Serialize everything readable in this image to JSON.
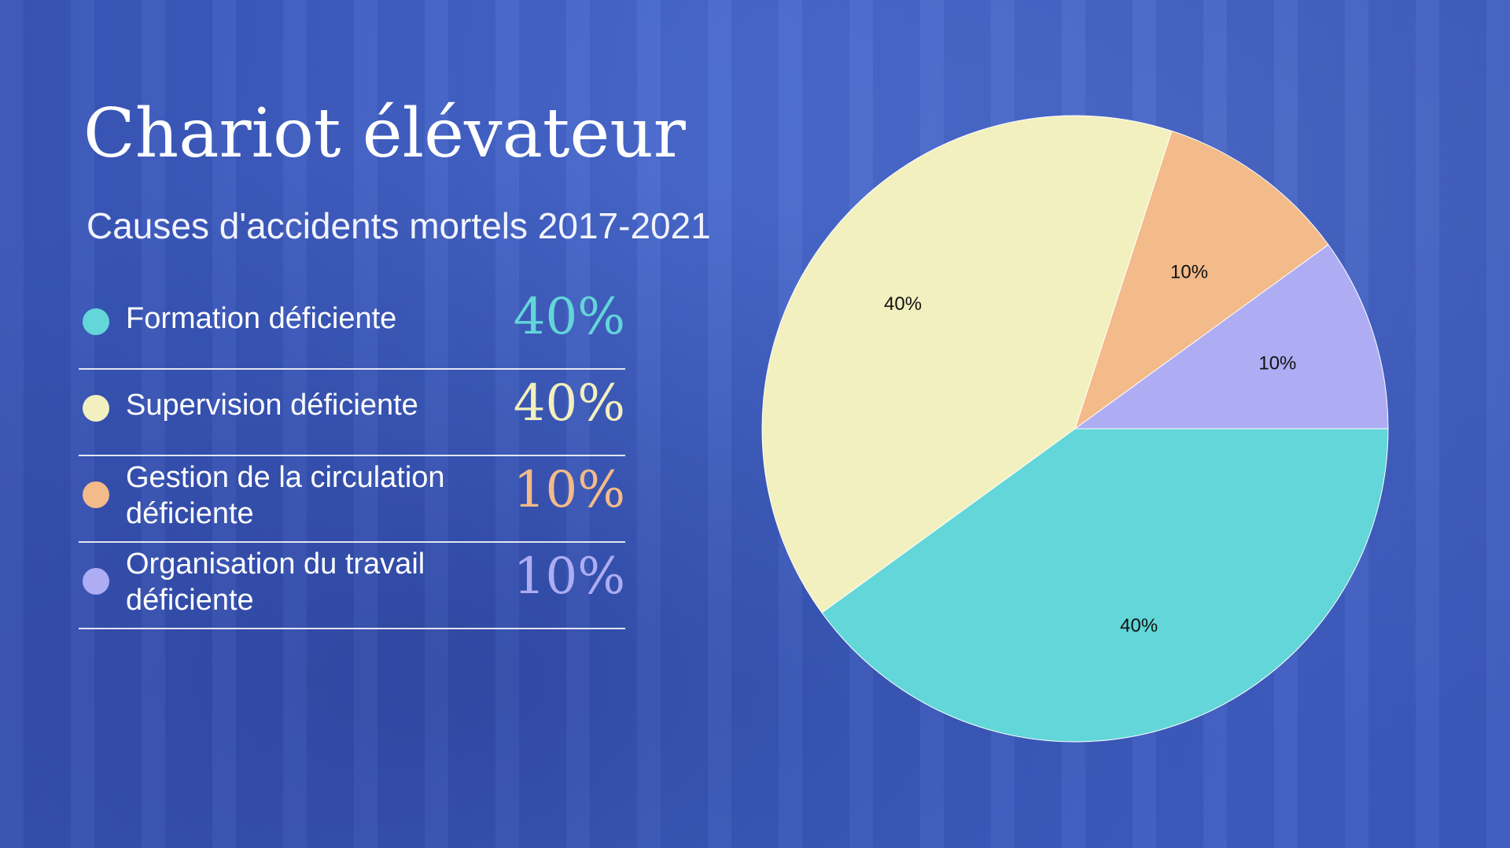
{
  "title": "Chariot élévateur",
  "subtitle": "Causes d'accidents mortels 2017-2021",
  "legend": [
    {
      "label": "Formation déficiente",
      "value": "40%",
      "color": "#62d6d8"
    },
    {
      "label": "Supervision déficiente",
      "value": "40%",
      "color": "#f2f0be"
    },
    {
      "label": "Gestion de la circulation déficiente",
      "value": "10%",
      "color": "#f3ba8a"
    },
    {
      "label": "Organisation du travail déficiente",
      "value": "10%",
      "color": "#aeacf3"
    }
  ],
  "chart_data": {
    "type": "pie",
    "categories": [
      "Formation déficiente",
      "Supervision déficiente",
      "Gestion de la circulation déficiente",
      "Organisation du travail déficiente"
    ],
    "values": [
      40,
      40,
      10,
      10
    ],
    "labels": [
      "40%",
      "40%",
      "10%",
      "10%"
    ],
    "colors": [
      "#62d6d8",
      "#f2f0be",
      "#f3ba8a",
      "#aeacf3"
    ],
    "title": "",
    "legend_position": "left"
  }
}
